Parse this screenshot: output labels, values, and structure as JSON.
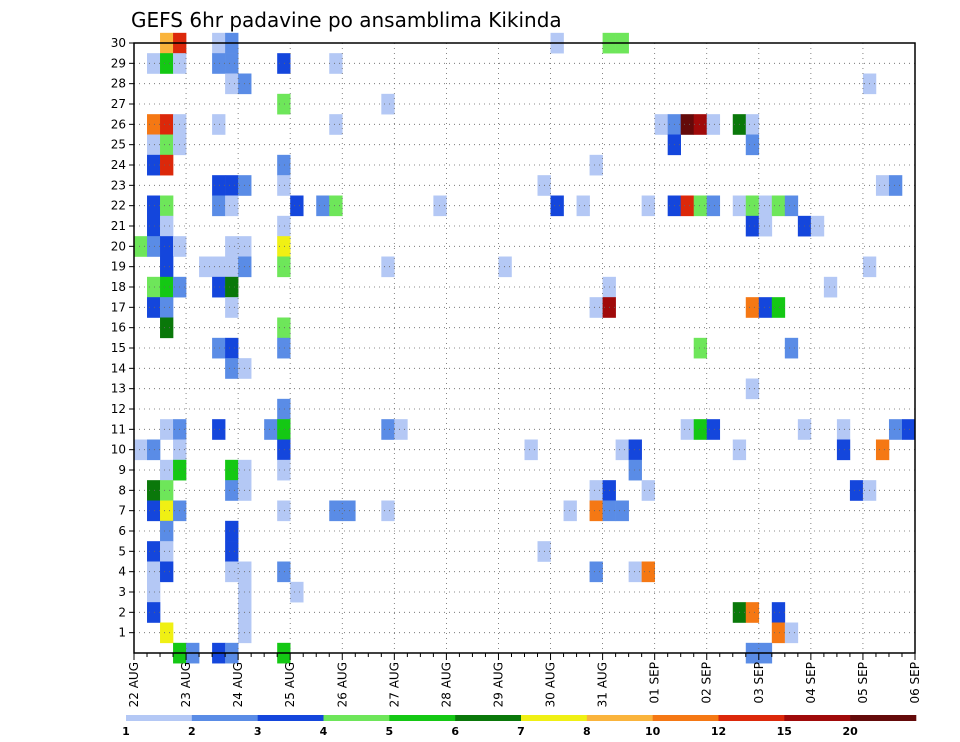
{
  "chart_data": {
    "type": "heatmap",
    "title": "GEFS 6hr padavine po ansamblima Kikinda",
    "y_ticks": [
      "1",
      "2",
      "3",
      "4",
      "5",
      "6",
      "7",
      "8",
      "9",
      "10",
      "11",
      "12",
      "13",
      "14",
      "15",
      "16",
      "17",
      "18",
      "19",
      "20",
      "21",
      "22",
      "23",
      "24",
      "25",
      "26",
      "27",
      "28",
      "29",
      "30"
    ],
    "ylim": [
      0,
      30
    ],
    "x_ticks": [
      "22 AUG",
      "23 AUG",
      "24 AUG",
      "25 AUG",
      "26 AUG",
      "27 AUG",
      "28 AUG",
      "29 AUG",
      "30 AUG",
      "31 AUG",
      "01 SEP",
      "02 SEP",
      "03 SEP",
      "04 SEP",
      "05 SEP",
      "06 SEP"
    ],
    "x_steps_per_day": 4,
    "x_steps_total": 60,
    "grid": true,
    "legend": {
      "placement": "bottom",
      "labels": [
        "1",
        "2",
        "3",
        "4",
        "5",
        "6",
        "7",
        "8",
        "10",
        "12",
        "15",
        "20"
      ],
      "colors": [
        "#b4c8f5",
        "#5a8ce6",
        "#1446dc",
        "#6ee65a",
        "#14c814",
        "#0a780a",
        "#f0f014",
        "#fab43c",
        "#f57814",
        "#dc280a",
        "#a00a0a",
        "#640a0a"
      ]
    },
    "cells": [
      {
        "t": 2,
        "m": 30,
        "c": 7
      },
      {
        "t": 3,
        "m": 30,
        "c": 9
      },
      {
        "t": 6,
        "m": 30,
        "c": 0
      },
      {
        "t": 7,
        "m": 30,
        "c": 1
      },
      {
        "t": 32,
        "m": 30,
        "c": 0
      },
      {
        "t": 36,
        "m": 30,
        "c": 3
      },
      {
        "t": 37,
        "m": 30,
        "c": 3
      },
      {
        "t": 1,
        "m": 29,
        "c": 0
      },
      {
        "t": 2,
        "m": 29,
        "c": 4
      },
      {
        "t": 3,
        "m": 29,
        "c": 0
      },
      {
        "t": 6,
        "m": 29,
        "c": 1
      },
      {
        "t": 7,
        "m": 29,
        "c": 1
      },
      {
        "t": 11,
        "m": 29,
        "c": 2
      },
      {
        "t": 15,
        "m": 29,
        "c": 0
      },
      {
        "t": 7,
        "m": 28,
        "c": 0
      },
      {
        "t": 8,
        "m": 28,
        "c": 1
      },
      {
        "t": 56,
        "m": 28,
        "c": 0
      },
      {
        "t": 11,
        "m": 27,
        "c": 3
      },
      {
        "t": 19,
        "m": 27,
        "c": 0
      },
      {
        "t": 1,
        "m": 26,
        "c": 8
      },
      {
        "t": 2,
        "m": 26,
        "c": 9
      },
      {
        "t": 3,
        "m": 26,
        "c": 0
      },
      {
        "t": 6,
        "m": 26,
        "c": 0
      },
      {
        "t": 15,
        "m": 26,
        "c": 0
      },
      {
        "t": 40,
        "m": 26,
        "c": 0
      },
      {
        "t": 41,
        "m": 26,
        "c": 1
      },
      {
        "t": 42,
        "m": 26,
        "c": 11
      },
      {
        "t": 43,
        "m": 26,
        "c": 10
      },
      {
        "t": 44,
        "m": 26,
        "c": 0
      },
      {
        "t": 46,
        "m": 26,
        "c": 5
      },
      {
        "t": 47,
        "m": 26,
        "c": 0
      },
      {
        "t": 1,
        "m": 25,
        "c": 0
      },
      {
        "t": 2,
        "m": 25,
        "c": 3
      },
      {
        "t": 3,
        "m": 25,
        "c": 0
      },
      {
        "t": 41,
        "m": 25,
        "c": 2
      },
      {
        "t": 47,
        "m": 25,
        "c": 1
      },
      {
        "t": 1,
        "m": 24,
        "c": 2
      },
      {
        "t": 2,
        "m": 24,
        "c": 9
      },
      {
        "t": 11,
        "m": 24,
        "c": 1
      },
      {
        "t": 35,
        "m": 24,
        "c": 0
      },
      {
        "t": 6,
        "m": 23,
        "c": 2
      },
      {
        "t": 7,
        "m": 23,
        "c": 2
      },
      {
        "t": 8,
        "m": 23,
        "c": 1
      },
      {
        "t": 11,
        "m": 23,
        "c": 0
      },
      {
        "t": 31,
        "m": 23,
        "c": 0
      },
      {
        "t": 57,
        "m": 23,
        "c": 0
      },
      {
        "t": 58,
        "m": 23,
        "c": 1
      },
      {
        "t": 1,
        "m": 22,
        "c": 2
      },
      {
        "t": 2,
        "m": 22,
        "c": 3
      },
      {
        "t": 6,
        "m": 22,
        "c": 1
      },
      {
        "t": 7,
        "m": 22,
        "c": 0
      },
      {
        "t": 12,
        "m": 22,
        "c": 2
      },
      {
        "t": 14,
        "m": 22,
        "c": 1
      },
      {
        "t": 15,
        "m": 22,
        "c": 3
      },
      {
        "t": 23,
        "m": 22,
        "c": 0
      },
      {
        "t": 32,
        "m": 22,
        "c": 2
      },
      {
        "t": 34,
        "m": 22,
        "c": 0
      },
      {
        "t": 39,
        "m": 22,
        "c": 0
      },
      {
        "t": 41,
        "m": 22,
        "c": 2
      },
      {
        "t": 42,
        "m": 22,
        "c": 9
      },
      {
        "t": 43,
        "m": 22,
        "c": 3
      },
      {
        "t": 44,
        "m": 22,
        "c": 1
      },
      {
        "t": 46,
        "m": 22,
        "c": 0
      },
      {
        "t": 47,
        "m": 22,
        "c": 3
      },
      {
        "t": 48,
        "m": 22,
        "c": 0
      },
      {
        "t": 49,
        "m": 22,
        "c": 3
      },
      {
        "t": 50,
        "m": 22,
        "c": 1
      },
      {
        "t": 1,
        "m": 21,
        "c": 2
      },
      {
        "t": 2,
        "m": 21,
        "c": 0
      },
      {
        "t": 11,
        "m": 21,
        "c": 0
      },
      {
        "t": 47,
        "m": 21,
        "c": 2
      },
      {
        "t": 48,
        "m": 21,
        "c": 0
      },
      {
        "t": 51,
        "m": 21,
        "c": 2
      },
      {
        "t": 52,
        "m": 21,
        "c": 0
      },
      {
        "t": 0,
        "m": 20,
        "c": 3
      },
      {
        "t": 1,
        "m": 20,
        "c": 1
      },
      {
        "t": 2,
        "m": 20,
        "c": 2
      },
      {
        "t": 3,
        "m": 20,
        "c": 0
      },
      {
        "t": 7,
        "m": 20,
        "c": 0
      },
      {
        "t": 8,
        "m": 20,
        "c": 0
      },
      {
        "t": 11,
        "m": 20,
        "c": 6
      },
      {
        "t": 2,
        "m": 19,
        "c": 2
      },
      {
        "t": 5,
        "m": 19,
        "c": 0
      },
      {
        "t": 6,
        "m": 19,
        "c": 0
      },
      {
        "t": 7,
        "m": 19,
        "c": 0
      },
      {
        "t": 8,
        "m": 19,
        "c": 1
      },
      {
        "t": 11,
        "m": 19,
        "c": 3
      },
      {
        "t": 19,
        "m": 19,
        "c": 0
      },
      {
        "t": 28,
        "m": 19,
        "c": 0
      },
      {
        "t": 56,
        "m": 19,
        "c": 0
      },
      {
        "t": 1,
        "m": 18,
        "c": 3
      },
      {
        "t": 2,
        "m": 18,
        "c": 4
      },
      {
        "t": 3,
        "m": 18,
        "c": 1
      },
      {
        "t": 6,
        "m": 18,
        "c": 2
      },
      {
        "t": 7,
        "m": 18,
        "c": 5
      },
      {
        "t": 36,
        "m": 18,
        "c": 0
      },
      {
        "t": 53,
        "m": 18,
        "c": 0
      },
      {
        "t": 1,
        "m": 17,
        "c": 2
      },
      {
        "t": 2,
        "m": 17,
        "c": 1
      },
      {
        "t": 7,
        "m": 17,
        "c": 0
      },
      {
        "t": 35,
        "m": 17,
        "c": 0
      },
      {
        "t": 36,
        "m": 17,
        "c": 10
      },
      {
        "t": 47,
        "m": 17,
        "c": 8
      },
      {
        "t": 48,
        "m": 17,
        "c": 2
      },
      {
        "t": 49,
        "m": 17,
        "c": 4
      },
      {
        "t": 2,
        "m": 16,
        "c": 5
      },
      {
        "t": 11,
        "m": 16,
        "c": 3
      },
      {
        "t": 11,
        "m": 15,
        "c": 1
      },
      {
        "t": 6,
        "m": 15,
        "c": 1
      },
      {
        "t": 7,
        "m": 15,
        "c": 2
      },
      {
        "t": 43,
        "m": 15,
        "c": 3
      },
      {
        "t": 50,
        "m": 15,
        "c": 1
      },
      {
        "t": 7,
        "m": 14,
        "c": 1
      },
      {
        "t": 8,
        "m": 14,
        "c": 0
      },
      {
        "t": 47,
        "m": 13,
        "c": 0
      },
      {
        "t": 11,
        "m": 12,
        "c": 1
      },
      {
        "t": 2,
        "m": 11,
        "c": 0
      },
      {
        "t": 3,
        "m": 11,
        "c": 1
      },
      {
        "t": 6,
        "m": 11,
        "c": 2
      },
      {
        "t": 10,
        "m": 11,
        "c": 1
      },
      {
        "t": 11,
        "m": 11,
        "c": 4
      },
      {
        "t": 19,
        "m": 11,
        "c": 1
      },
      {
        "t": 20,
        "m": 11,
        "c": 0
      },
      {
        "t": 42,
        "m": 11,
        "c": 0
      },
      {
        "t": 43,
        "m": 11,
        "c": 4
      },
      {
        "t": 44,
        "m": 11,
        "c": 2
      },
      {
        "t": 51,
        "m": 11,
        "c": 0
      },
      {
        "t": 54,
        "m": 11,
        "c": 0
      },
      {
        "t": 58,
        "m": 11,
        "c": 1
      },
      {
        "t": 59,
        "m": 11,
        "c": 2
      },
      {
        "t": 0,
        "m": 10,
        "c": 0
      },
      {
        "t": 1,
        "m": 10,
        "c": 1
      },
      {
        "t": 3,
        "m": 10,
        "c": 0
      },
      {
        "t": 11,
        "m": 10,
        "c": 2
      },
      {
        "t": 30,
        "m": 10,
        "c": 0
      },
      {
        "t": 37,
        "m": 10,
        "c": 0
      },
      {
        "t": 38,
        "m": 10,
        "c": 2
      },
      {
        "t": 46,
        "m": 10,
        "c": 0
      },
      {
        "t": 54,
        "m": 10,
        "c": 2
      },
      {
        "t": 57,
        "m": 10,
        "c": 8
      },
      {
        "t": 2,
        "m": 9,
        "c": 0
      },
      {
        "t": 3,
        "m": 9,
        "c": 4
      },
      {
        "t": 7,
        "m": 9,
        "c": 4
      },
      {
        "t": 8,
        "m": 9,
        "c": 0
      },
      {
        "t": 11,
        "m": 9,
        "c": 0
      },
      {
        "t": 38,
        "m": 9,
        "c": 1
      },
      {
        "t": 1,
        "m": 8,
        "c": 5
      },
      {
        "t": 2,
        "m": 8,
        "c": 3
      },
      {
        "t": 7,
        "m": 8,
        "c": 1
      },
      {
        "t": 8,
        "m": 8,
        "c": 0
      },
      {
        "t": 35,
        "m": 8,
        "c": 0
      },
      {
        "t": 36,
        "m": 8,
        "c": 2
      },
      {
        "t": 39,
        "m": 8,
        "c": 0
      },
      {
        "t": 55,
        "m": 8,
        "c": 2
      },
      {
        "t": 56,
        "m": 8,
        "c": 0
      },
      {
        "t": 1,
        "m": 7,
        "c": 2
      },
      {
        "t": 2,
        "m": 7,
        "c": 6
      },
      {
        "t": 3,
        "m": 7,
        "c": 1
      },
      {
        "t": 11,
        "m": 7,
        "c": 0
      },
      {
        "t": 15,
        "m": 7,
        "c": 1
      },
      {
        "t": 16,
        "m": 7,
        "c": 1
      },
      {
        "t": 19,
        "m": 7,
        "c": 0
      },
      {
        "t": 33,
        "m": 7,
        "c": 0
      },
      {
        "t": 35,
        "m": 7,
        "c": 8
      },
      {
        "t": 36,
        "m": 7,
        "c": 1
      },
      {
        "t": 37,
        "m": 7,
        "c": 1
      },
      {
        "t": 2,
        "m": 6,
        "c": 1
      },
      {
        "t": 7,
        "m": 6,
        "c": 2
      },
      {
        "t": 1,
        "m": 5,
        "c": 2
      },
      {
        "t": 2,
        "m": 5,
        "c": 0
      },
      {
        "t": 7,
        "m": 5,
        "c": 2
      },
      {
        "t": 31,
        "m": 5,
        "c": 0
      },
      {
        "t": 1,
        "m": 4,
        "c": 0
      },
      {
        "t": 2,
        "m": 4,
        "c": 2
      },
      {
        "t": 7,
        "m": 4,
        "c": 0
      },
      {
        "t": 8,
        "m": 4,
        "c": 0
      },
      {
        "t": 11,
        "m": 4,
        "c": 1
      },
      {
        "t": 35,
        "m": 4,
        "c": 1
      },
      {
        "t": 38,
        "m": 4,
        "c": 0
      },
      {
        "t": 39,
        "m": 4,
        "c": 8
      },
      {
        "t": 1,
        "m": 3,
        "c": 0
      },
      {
        "t": 8,
        "m": 3,
        "c": 0
      },
      {
        "t": 12,
        "m": 3,
        "c": 0
      },
      {
        "t": 8,
        "m": 2,
        "c": 0
      },
      {
        "t": 1,
        "m": 2,
        "c": 2
      },
      {
        "t": 46,
        "m": 2,
        "c": 5
      },
      {
        "t": 47,
        "m": 2,
        "c": 8
      },
      {
        "t": 49,
        "m": 2,
        "c": 2
      },
      {
        "t": 2,
        "m": 1,
        "c": 6
      },
      {
        "t": 8,
        "m": 1,
        "c": 0
      },
      {
        "t": 49,
        "m": 1,
        "c": 8
      },
      {
        "t": 50,
        "m": 1,
        "c": 0
      },
      {
        "t": 3,
        "m": 0,
        "c": 4
      },
      {
        "t": 4,
        "m": 0,
        "c": 1
      },
      {
        "t": 6,
        "m": 0,
        "c": 2
      },
      {
        "t": 7,
        "m": 0,
        "c": 1
      },
      {
        "t": 11,
        "m": 0,
        "c": 4
      },
      {
        "t": 47,
        "m": 0,
        "c": 1
      },
      {
        "t": 48,
        "m": 0,
        "c": 1
      }
    ]
  }
}
